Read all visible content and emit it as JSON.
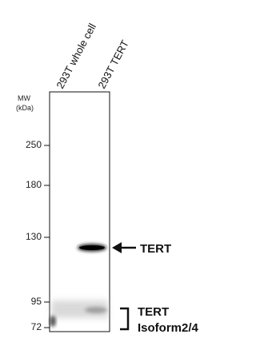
{
  "lanes": [
    "293T whole cell",
    "293T TERT"
  ],
  "mw_label": [
    "MW",
    "(kDa)"
  ],
  "markers": [
    250,
    180,
    130,
    95,
    72
  ],
  "annotations": {
    "band": "TERT",
    "bracket": [
      "TERT",
      "Isoform2/4"
    ]
  }
}
